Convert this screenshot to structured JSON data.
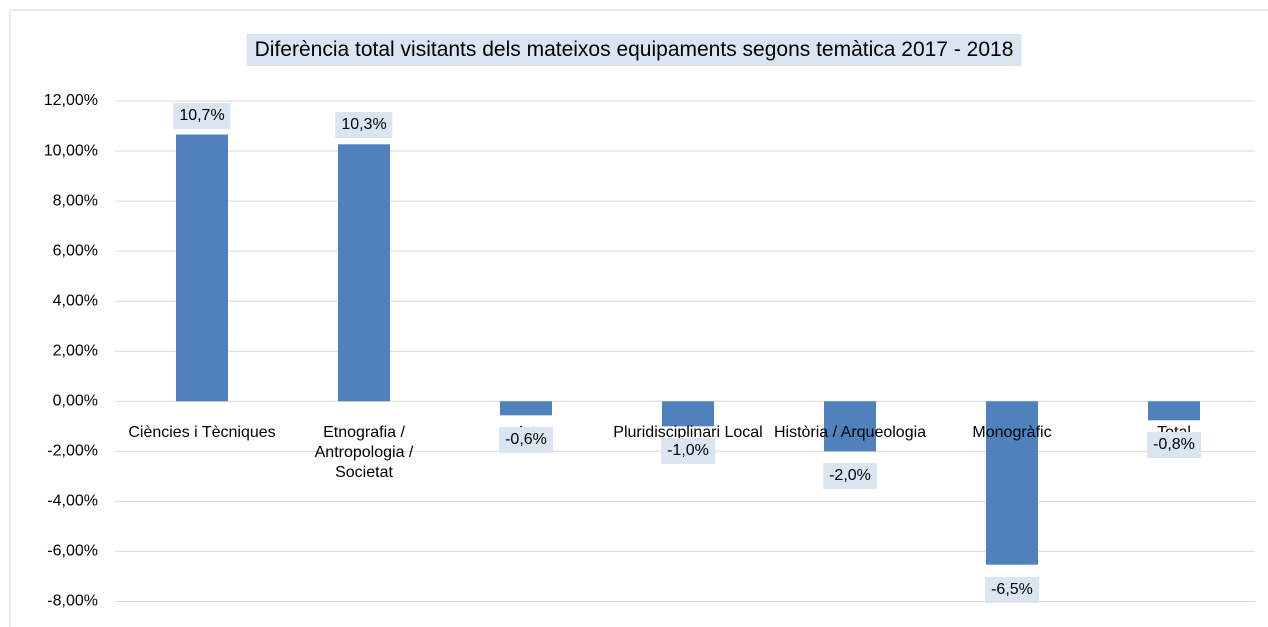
{
  "chart_data": {
    "type": "bar",
    "title": "Diferència total visitants dels mateixos equipaments segons temàtica 2017 - 2018",
    "categories": [
      "Ciències i Tècniques",
      "Etnografia / Antropologia / Societat",
      "Art",
      "Pluridisciplinari Local",
      "Història / Arqueologia",
      "Monogràfic",
      "Total"
    ],
    "values": [
      10.66,
      10.27,
      -0.56,
      -1.0,
      -2.0,
      -6.53,
      -0.76
    ],
    "value_labels": [
      "10,7%",
      "10,3%",
      "-0,6%",
      "-1,0%",
      "-2,0%",
      "-6,5%",
      "-0,8%"
    ],
    "color": "#4f81bd",
    "ylim": [
      -8.7,
      12
    ],
    "yticks": [
      {
        "value": -8,
        "label": "-8,00%"
      },
      {
        "value": -6,
        "label": "-6,00%"
      },
      {
        "value": -4,
        "label": "-4,00%"
      },
      {
        "value": -2,
        "label": "-2,00%"
      },
      {
        "value": 0,
        "label": "0,00%"
      },
      {
        "value": 2,
        "label": "2,00%"
      },
      {
        "value": 4,
        "label": "4,00%"
      },
      {
        "value": 6,
        "label": "6,00%"
      },
      {
        "value": 8,
        "label": "8,00%"
      },
      {
        "value": 10,
        "label": "10,00%"
      },
      {
        "value": 12,
        "label": "12,00%"
      }
    ],
    "grid": true
  }
}
